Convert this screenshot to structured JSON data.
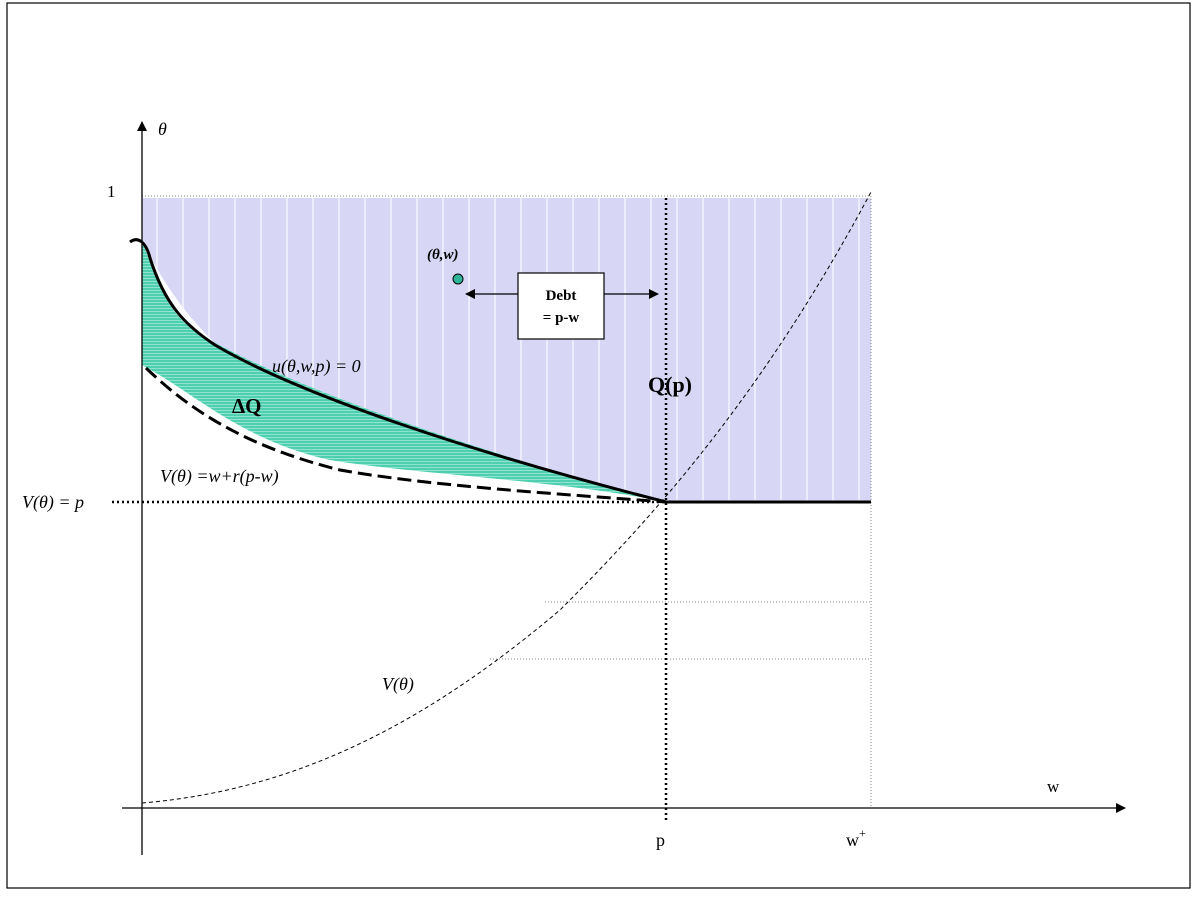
{
  "axes": {
    "y_label": "θ",
    "x_label": "w",
    "y_top_tick": "1",
    "x_tick_p": "p",
    "x_tick_wplus_base": "w",
    "x_tick_wplus_sup": "+"
  },
  "labels": {
    "point": "(θ,w)",
    "debt_line1": "Debt",
    "debt_line2": "= p-w",
    "participation_curve": "u(θ,w,p) = 0",
    "delta_q": "ΔQ",
    "q_of_p": "Q(p)",
    "v_eq_line": "V(θ) =w+r(p-w)",
    "v_theta_p": "V(θ) = p",
    "v_theta": "V(θ)"
  },
  "colors": {
    "region_q": "#d7d7f5",
    "region_q_stripe": "#ececfb",
    "delta_q_fill": "#4ed0b0",
    "point_fill": "#2fb59a",
    "line": "#000000"
  }
}
